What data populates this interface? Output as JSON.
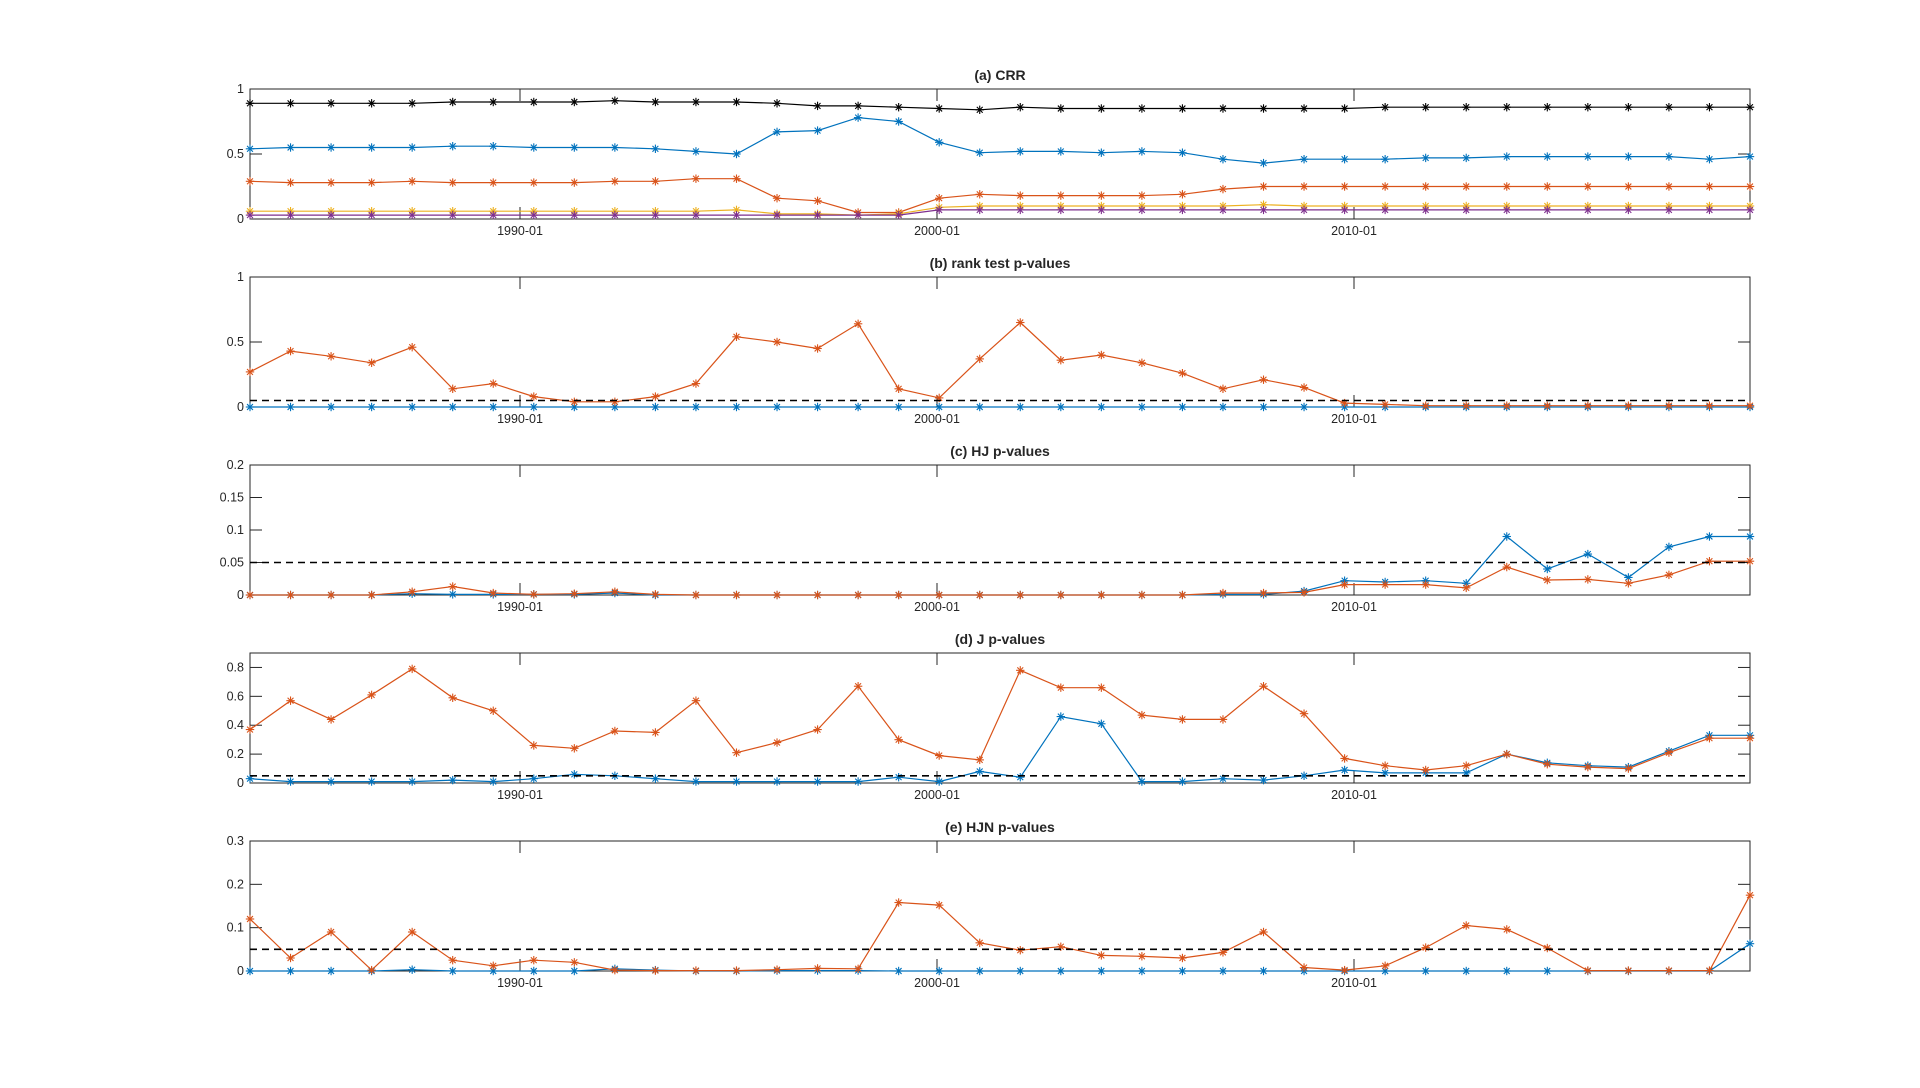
{
  "colors": {
    "black": "#000000",
    "blue": "#0072BD",
    "orange": "#D95319",
    "yellow": "#EDB120",
    "purple": "#7E2F8E",
    "axis": "#262626"
  },
  "chart_data": [
    {
      "type": "line",
      "title": "(a) CRR",
      "marker": "asterisk",
      "x_ticks": [
        "1990-01",
        "2000-01",
        "2010-01"
      ],
      "ylim": [
        0,
        1
      ],
      "y_ticks": [
        "0",
        "0.5",
        "1"
      ],
      "reference_line": null,
      "series": [
        {
          "color": "black",
          "values": [
            0.89,
            0.89,
            0.89,
            0.89,
            0.89,
            0.9,
            0.9,
            0.9,
            0.9,
            0.91,
            0.9,
            0.9,
            0.9,
            0.89,
            0.87,
            0.87,
            0.86,
            0.85,
            0.84,
            0.86,
            0.85,
            0.85,
            0.85,
            0.85,
            0.85,
            0.85,
            0.85,
            0.85,
            0.86,
            0.86,
            0.86,
            0.86,
            0.86,
            0.86,
            0.86,
            0.86,
            0.86,
            0.86
          ]
        },
        {
          "color": "blue",
          "values": [
            0.54,
            0.55,
            0.55,
            0.55,
            0.55,
            0.56,
            0.56,
            0.55,
            0.55,
            0.55,
            0.54,
            0.52,
            0.5,
            0.67,
            0.68,
            0.78,
            0.75,
            0.59,
            0.51,
            0.52,
            0.52,
            0.51,
            0.52,
            0.51,
            0.46,
            0.43,
            0.46,
            0.46,
            0.46,
            0.47,
            0.47,
            0.48,
            0.48,
            0.48,
            0.48,
            0.48,
            0.46,
            0.48
          ]
        },
        {
          "color": "orange",
          "values": [
            0.29,
            0.28,
            0.28,
            0.28,
            0.29,
            0.28,
            0.28,
            0.28,
            0.28,
            0.29,
            0.29,
            0.31,
            0.31,
            0.16,
            0.14,
            0.05,
            0.05,
            0.16,
            0.19,
            0.18,
            0.18,
            0.18,
            0.18,
            0.19,
            0.23,
            0.25,
            0.25,
            0.25,
            0.25,
            0.25,
            0.25,
            0.25,
            0.25,
            0.25,
            0.25,
            0.25,
            0.25,
            0.25
          ]
        },
        {
          "color": "yellow",
          "values": [
            0.06,
            0.06,
            0.06,
            0.06,
            0.06,
            0.06,
            0.06,
            0.06,
            0.06,
            0.06,
            0.06,
            0.06,
            0.07,
            0.04,
            0.04,
            0.03,
            0.04,
            0.09,
            0.1,
            0.1,
            0.1,
            0.1,
            0.1,
            0.1,
            0.1,
            0.11,
            0.1,
            0.1,
            0.1,
            0.1,
            0.1,
            0.1,
            0.1,
            0.1,
            0.1,
            0.1,
            0.1,
            0.1
          ]
        },
        {
          "color": "purple",
          "values": [
            0.03,
            0.03,
            0.03,
            0.03,
            0.03,
            0.03,
            0.03,
            0.03,
            0.03,
            0.03,
            0.03,
            0.03,
            0.03,
            0.03,
            0.03,
            0.03,
            0.03,
            0.07,
            0.07,
            0.07,
            0.07,
            0.07,
            0.07,
            0.07,
            0.07,
            0.07,
            0.07,
            0.07,
            0.07,
            0.07,
            0.07,
            0.07,
            0.07,
            0.07,
            0.07,
            0.07,
            0.07,
            0.07
          ]
        }
      ]
    },
    {
      "type": "line",
      "title": "(b) rank test p-values",
      "marker": "asterisk",
      "x_ticks": [
        "1990-01",
        "2000-01",
        "2010-01"
      ],
      "ylim": [
        0,
        1
      ],
      "y_ticks": [
        "0",
        "0.5",
        "1"
      ],
      "reference_line": 0.05,
      "series": [
        {
          "color": "blue",
          "values": [
            0,
            0,
            0,
            0,
            0,
            0,
            0,
            0,
            0,
            0,
            0,
            0,
            0,
            0,
            0,
            0,
            0,
            0,
            0,
            0,
            0,
            0,
            0,
            0,
            0,
            0,
            0,
            0,
            0,
            0,
            0,
            0,
            0,
            0,
            0,
            0,
            0,
            0
          ]
        },
        {
          "color": "orange",
          "values": [
            0.27,
            0.43,
            0.39,
            0.34,
            0.46,
            0.14,
            0.18,
            0.08,
            0.04,
            0.04,
            0.08,
            0.18,
            0.54,
            0.5,
            0.45,
            0.64,
            0.14,
            0.07,
            0.37,
            0.65,
            0.36,
            0.4,
            0.34,
            0.26,
            0.14,
            0.21,
            0.15,
            0.03,
            0.02,
            0.01,
            0.01,
            0.01,
            0.01,
            0.01,
            0.01,
            0.01,
            0.01,
            0.01
          ]
        }
      ]
    },
    {
      "type": "line",
      "title": "(c) HJ p-values",
      "marker": "asterisk",
      "x_ticks": [
        "1990-01",
        "2000-01",
        "2010-01"
      ],
      "ylim": [
        0,
        0.2
      ],
      "y_ticks": [
        "0",
        "0.05",
        "0.1",
        "0.15",
        "0.2"
      ],
      "reference_line": 0.05,
      "series": [
        {
          "color": "blue",
          "values": [
            0,
            0,
            0,
            0,
            0.002,
            0.001,
            0.001,
            0.001,
            0.001,
            0.003,
            0,
            0,
            0,
            0,
            0,
            0,
            0,
            0,
            0,
            0,
            0,
            0,
            0,
            0,
            0.001,
            0.001,
            0.006,
            0.022,
            0.02,
            0.022,
            0.018,
            0.09,
            0.04,
            0.063,
            0.027,
            0.074,
            0.09,
            0.09
          ]
        },
        {
          "color": "orange",
          "values": [
            0,
            0,
            0,
            0,
            0.005,
            0.013,
            0.003,
            0.001,
            0.002,
            0.005,
            0.001,
            0,
            0,
            0,
            0,
            0,
            0,
            0,
            0,
            0,
            0,
            0,
            0,
            0,
            0.003,
            0.003,
            0.004,
            0.016,
            0.016,
            0.016,
            0.011,
            0.043,
            0.023,
            0.024,
            0.018,
            0.031,
            0.052,
            0.052
          ]
        }
      ]
    },
    {
      "type": "line",
      "title": "(d) J p-values",
      "marker": "asterisk",
      "x_ticks": [
        "1990-01",
        "2000-01",
        "2010-01"
      ],
      "ylim": [
        0,
        0.9
      ],
      "y_ticks": [
        "0",
        "0.2",
        "0.4",
        "0.6",
        "0.8"
      ],
      "reference_line": 0.05,
      "series": [
        {
          "color": "blue",
          "values": [
            0.03,
            0.01,
            0.01,
            0.01,
            0.01,
            0.02,
            0.01,
            0.03,
            0.06,
            0.05,
            0.03,
            0.01,
            0.01,
            0.01,
            0.01,
            0.01,
            0.04,
            0.01,
            0.08,
            0.04,
            0.46,
            0.41,
            0.01,
            0.01,
            0.03,
            0.02,
            0.05,
            0.09,
            0.07,
            0.07,
            0.07,
            0.2,
            0.14,
            0.12,
            0.11,
            0.22,
            0.33,
            0.33
          ]
        },
        {
          "color": "orange",
          "values": [
            0.37,
            0.57,
            0.44,
            0.61,
            0.79,
            0.59,
            0.5,
            0.26,
            0.24,
            0.36,
            0.35,
            0.57,
            0.21,
            0.28,
            0.37,
            0.67,
            0.3,
            0.19,
            0.16,
            0.78,
            0.66,
            0.66,
            0.47,
            0.44,
            0.44,
            0.67,
            0.48,
            0.17,
            0.12,
            0.09,
            0.12,
            0.2,
            0.13,
            0.11,
            0.1,
            0.21,
            0.31,
            0.31
          ]
        }
      ]
    },
    {
      "type": "line",
      "title": "(e) HJN p-values",
      "marker": "asterisk",
      "x_ticks": [
        "1990-01",
        "2000-01",
        "2010-01"
      ],
      "ylim": [
        0,
        0.3
      ],
      "y_ticks": [
        "0",
        "0.1",
        "0.2",
        "0.3"
      ],
      "reference_line": 0.05,
      "series": [
        {
          "color": "blue",
          "values": [
            0,
            0,
            0,
            0,
            0.003,
            0,
            0,
            0,
            0,
            0.005,
            0.002,
            0,
            0,
            0.001,
            0.001,
            0.001,
            0,
            0,
            0,
            0,
            0,
            0,
            0,
            0,
            0,
            0,
            0,
            0,
            0,
            0,
            0,
            0,
            0,
            0,
            0,
            0,
            0,
            0.063
          ]
        },
        {
          "color": "orange",
          "values": [
            0.12,
            0.03,
            0.09,
            0.002,
            0.09,
            0.025,
            0.012,
            0.025,
            0.02,
            0.002,
            0.001,
            0.001,
            0.001,
            0.003,
            0.006,
            0.005,
            0.158,
            0.152,
            0.065,
            0.048,
            0.056,
            0.036,
            0.034,
            0.03,
            0.043,
            0.09,
            0.008,
            0.002,
            0.012,
            0.054,
            0.105,
            0.096,
            0.053,
            0.001,
            0.001,
            0.001,
            0.001,
            0.175
          ]
        }
      ]
    }
  ]
}
